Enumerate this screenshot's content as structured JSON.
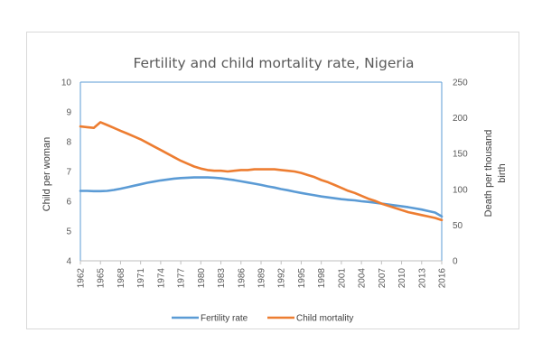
{
  "chart_data": {
    "type": "line",
    "title": "Fertility and child mortality rate, Nigeria",
    "xlabel": "",
    "ylabel": "Child per woman",
    "y2label": [
      "Death per thousand",
      "birth"
    ],
    "ylim": [
      4,
      10
    ],
    "y2lim": [
      0,
      250
    ],
    "yticks": [
      4,
      5,
      6,
      7,
      8,
      9,
      10
    ],
    "y2ticks": [
      0,
      50,
      100,
      150,
      200,
      250
    ],
    "xlim": [
      1962,
      2016
    ],
    "xticks": [
      "1962",
      "1965",
      "1968",
      "1971",
      "1974",
      "1977",
      "1980",
      "1983",
      "1986",
      "1989",
      "1992",
      "1995",
      "1998",
      "2001",
      "2004",
      "2007",
      "2010",
      "2013",
      "2016"
    ],
    "grid": false,
    "legend_position": "bottom",
    "x": [
      1962,
      1963,
      1964,
      1965,
      1966,
      1967,
      1968,
      1969,
      1970,
      1971,
      1972,
      1973,
      1974,
      1975,
      1976,
      1977,
      1978,
      1979,
      1980,
      1981,
      1982,
      1983,
      1984,
      1985,
      1986,
      1987,
      1988,
      1989,
      1990,
      1991,
      1992,
      1993,
      1994,
      1995,
      1996,
      1997,
      1998,
      1999,
      2000,
      2001,
      2002,
      2003,
      2004,
      2005,
      2006,
      2007,
      2008,
      2009,
      2010,
      2011,
      2012,
      2013,
      2014,
      2015,
      2016
    ],
    "series": [
      {
        "name": "Fertility rate",
        "axis": "left",
        "color": "#5b9bd5",
        "values": [
          6.35,
          6.35,
          6.34,
          6.34,
          6.35,
          6.38,
          6.42,
          6.47,
          6.52,
          6.57,
          6.62,
          6.66,
          6.7,
          6.73,
          6.76,
          6.78,
          6.79,
          6.8,
          6.8,
          6.8,
          6.79,
          6.77,
          6.74,
          6.71,
          6.67,
          6.63,
          6.59,
          6.55,
          6.5,
          6.46,
          6.41,
          6.37,
          6.32,
          6.28,
          6.24,
          6.2,
          6.16,
          6.13,
          6.1,
          6.07,
          6.05,
          6.03,
          6.0,
          5.98,
          5.95,
          5.92,
          5.89,
          5.86,
          5.83,
          5.8,
          5.76,
          5.72,
          5.67,
          5.62,
          5.49
        ]
      },
      {
        "name": "Child mortality",
        "axis": "right",
        "color": "#ed7d31",
        "values": [
          188,
          187,
          186,
          194,
          190,
          186,
          182,
          178,
          174,
          170,
          165,
          160,
          155,
          150,
          145,
          140,
          136,
          132,
          129,
          127,
          126,
          126,
          125,
          126,
          127,
          127,
          128,
          128,
          128,
          128,
          127,
          126,
          125,
          123,
          120,
          117,
          113,
          110,
          106,
          102,
          98,
          95,
          91,
          87,
          84,
          80,
          77,
          74,
          71,
          68,
          66,
          64,
          62,
          60,
          57
        ]
      }
    ]
  }
}
